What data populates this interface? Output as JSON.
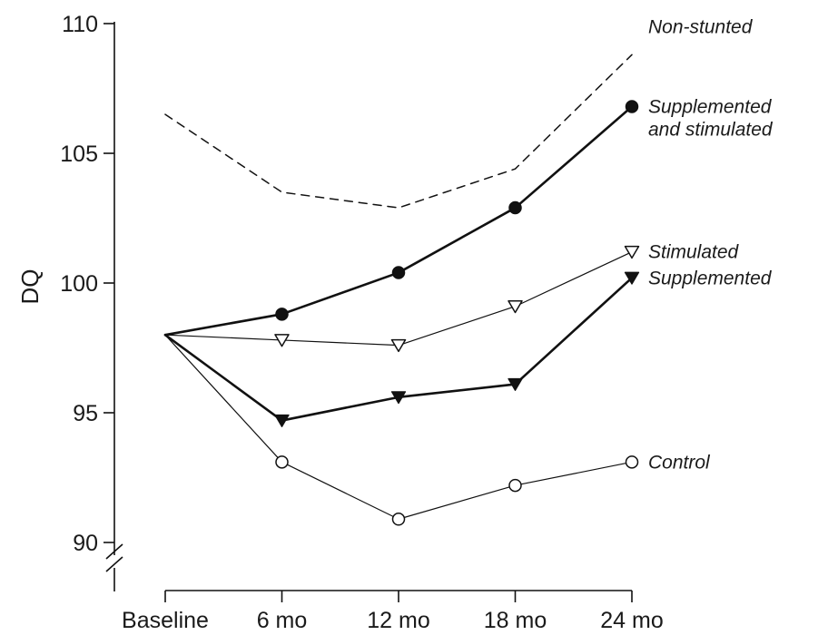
{
  "chart_data": {
    "type": "line",
    "ylabel": "DQ",
    "xlabel": "",
    "ylim": [
      89,
      110
    ],
    "yticks": [
      90,
      95,
      100,
      105,
      110
    ],
    "y_axis_break": true,
    "grid": false,
    "categories": [
      "Baseline",
      "6 mo",
      "12 mo",
      "18 mo",
      "24 mo"
    ],
    "series": [
      {
        "name": "Non-stunted",
        "label_lines": [
          "Non-stunted"
        ],
        "values": [
          106.5,
          103.5,
          102.9,
          104.4,
          108.8
        ],
        "style": "dashed",
        "marker": "none",
        "stroke_width": 1.5,
        "label_anchor_index": 4
      },
      {
        "name": "Supplemented and stimulated",
        "label_lines": [
          "Supplemented",
          "and stimulated"
        ],
        "values": [
          98.0,
          98.8,
          100.4,
          102.9,
          106.8
        ],
        "style": "solid",
        "marker": "filled-circle",
        "stroke_width": 2.6,
        "label_anchor_index": 4
      },
      {
        "name": "Stimulated",
        "label_lines": [
          "Stimulated"
        ],
        "values": [
          98.0,
          97.8,
          97.6,
          99.1,
          101.2
        ],
        "style": "solid",
        "marker": "open-triangle-down",
        "stroke_width": 1.2,
        "label_anchor_index": 4
      },
      {
        "name": "Supplemented",
        "label_lines": [
          "Supplemented"
        ],
        "values": [
          98.0,
          94.7,
          95.6,
          96.1,
          100.2
        ],
        "style": "solid",
        "marker": "filled-triangle-down",
        "stroke_width": 2.6,
        "label_anchor_index": 4
      },
      {
        "name": "Control",
        "label_lines": [
          "Control"
        ],
        "values": [
          98.0,
          93.1,
          90.9,
          92.2,
          93.1
        ],
        "style": "solid",
        "marker": "open-circle",
        "stroke_width": 1.2,
        "label_anchor_index": 4
      }
    ],
    "colors": {
      "ink": "#111111",
      "background": "#ffffff"
    }
  }
}
